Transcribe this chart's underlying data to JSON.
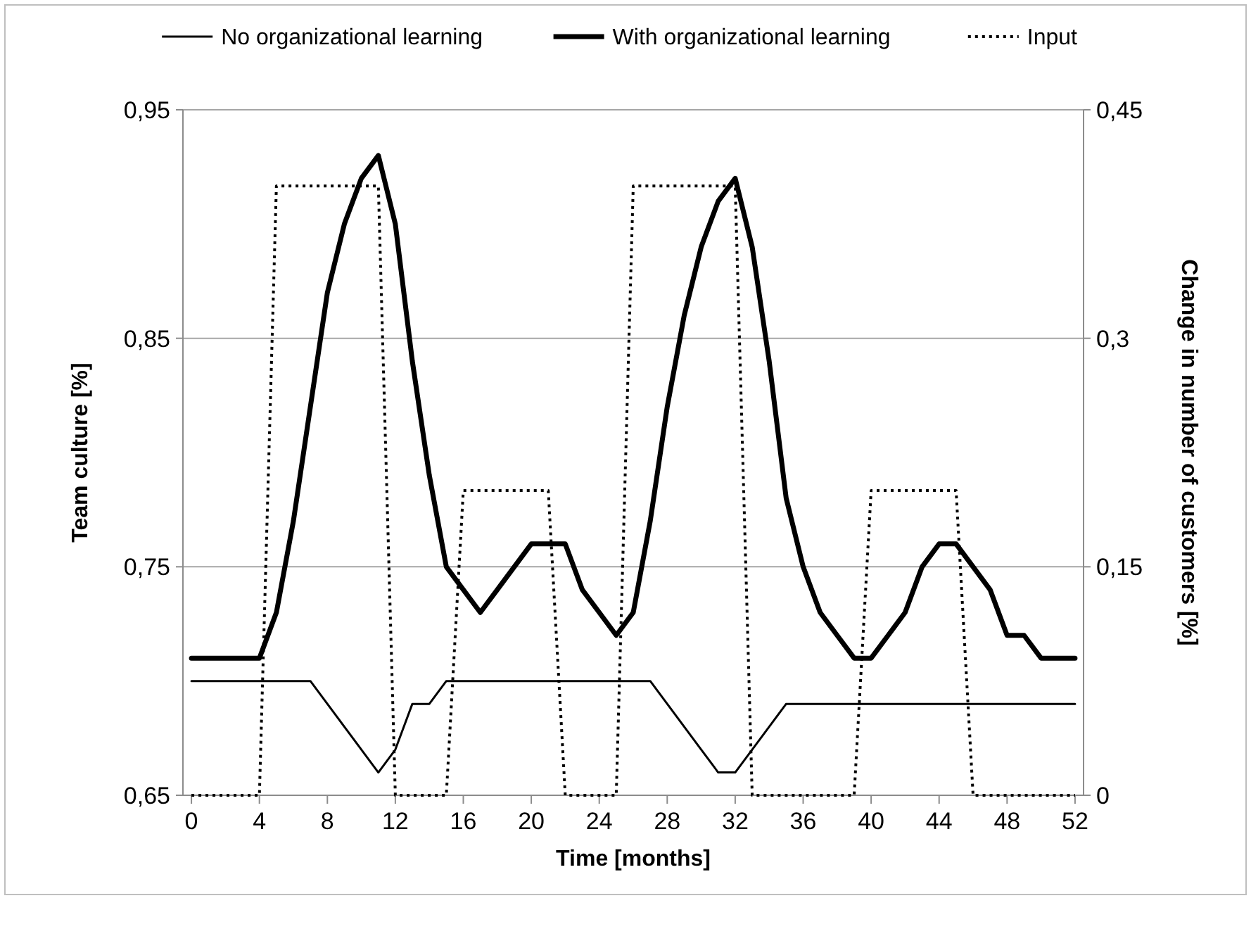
{
  "chart_data": {
    "type": "line",
    "xlabel": "Time [months]",
    "ylabel": "Team culture [%]",
    "y2label": "Change in number of customers [%]",
    "x": [
      0,
      1,
      2,
      3,
      4,
      5,
      6,
      7,
      8,
      9,
      10,
      11,
      12,
      13,
      14,
      15,
      16,
      17,
      18,
      19,
      20,
      21,
      22,
      23,
      24,
      25,
      26,
      27,
      28,
      29,
      30,
      31,
      32,
      33,
      34,
      35,
      36,
      37,
      38,
      39,
      40,
      41,
      42,
      43,
      44,
      45,
      46,
      47,
      48,
      49,
      50,
      51,
      52
    ],
    "xlim": [
      -0.5,
      52.5
    ],
    "xticks": [
      0,
      4,
      8,
      12,
      16,
      20,
      24,
      28,
      32,
      36,
      40,
      44,
      48,
      52
    ],
    "ylim": [
      0.65,
      0.95
    ],
    "yticks": [
      {
        "value": 0.65,
        "label": "0,65"
      },
      {
        "value": 0.75,
        "label": "0,75"
      },
      {
        "value": 0.85,
        "label": "0,85"
      },
      {
        "value": 0.95,
        "label": "0,95"
      }
    ],
    "y2lim": [
      0,
      0.45
    ],
    "y2ticks": [
      0,
      {
        "value": 0.15,
        "label": "0,15"
      },
      {
        "value": 0.3,
        "label": "0,3"
      },
      {
        "value": 0.45,
        "label": "0,45"
      }
    ],
    "grid": "y",
    "legend": "top",
    "marker": "none",
    "series": [
      {
        "name": "No organizational learning",
        "color": "#000000",
        "line_style": "solid",
        "values": [
          0.7,
          0.7,
          0.7,
          0.7,
          0.7,
          0.7,
          0.7,
          0.7,
          0.69,
          0.68,
          0.67,
          0.66,
          0.67,
          0.69,
          0.69,
          0.7,
          0.7,
          0.7,
          0.7,
          0.7,
          0.7,
          0.7,
          0.7,
          0.7,
          0.7,
          0.7,
          0.7,
          0.7,
          0.69,
          0.68,
          0.67,
          0.66,
          0.66,
          0.67,
          0.68,
          0.69,
          0.69,
          0.69,
          0.69,
          0.69,
          0.69,
          0.69,
          0.69,
          0.69,
          0.69,
          0.69,
          0.69,
          0.69,
          0.69,
          0.69,
          0.69,
          0.69,
          0.69
        ]
      },
      {
        "name": "With organizational learning",
        "color": "#000000",
        "line_style": "solid",
        "values": [
          0.71,
          0.71,
          0.71,
          0.71,
          0.71,
          0.73,
          0.77,
          0.82,
          0.87,
          0.9,
          0.92,
          0.93,
          0.9,
          0.84,
          0.79,
          0.75,
          0.74,
          0.73,
          0.74,
          0.75,
          0.76,
          0.76,
          0.76,
          0.74,
          0.73,
          0.72,
          0.73,
          0.77,
          0.82,
          0.86,
          0.89,
          0.91,
          0.92,
          0.89,
          0.84,
          0.78,
          0.75,
          0.73,
          0.72,
          0.71,
          0.71,
          0.72,
          0.73,
          0.75,
          0.76,
          0.76,
          0.75,
          0.74,
          0.72,
          0.72,
          0.71,
          0.71,
          0.71
        ]
      },
      {
        "name": "Input",
        "color": "#000000",
        "line_style": "dotted",
        "axis": "y2",
        "values": [
          0,
          0,
          0,
          0,
          0,
          0.4,
          0.4,
          0.4,
          0.4,
          0.4,
          0.4,
          0.4,
          0,
          0,
          0,
          0,
          0.2,
          0.2,
          0.2,
          0.2,
          0.2,
          0.2,
          0,
          0,
          0,
          0,
          0.4,
          0.4,
          0.4,
          0.4,
          0.4,
          0.4,
          0.4,
          0,
          0,
          0,
          0,
          0,
          0,
          0,
          0.2,
          0.2,
          0.2,
          0.2,
          0.2,
          0.2,
          0,
          0,
          0,
          0,
          0,
          0,
          0
        ]
      }
    ]
  }
}
